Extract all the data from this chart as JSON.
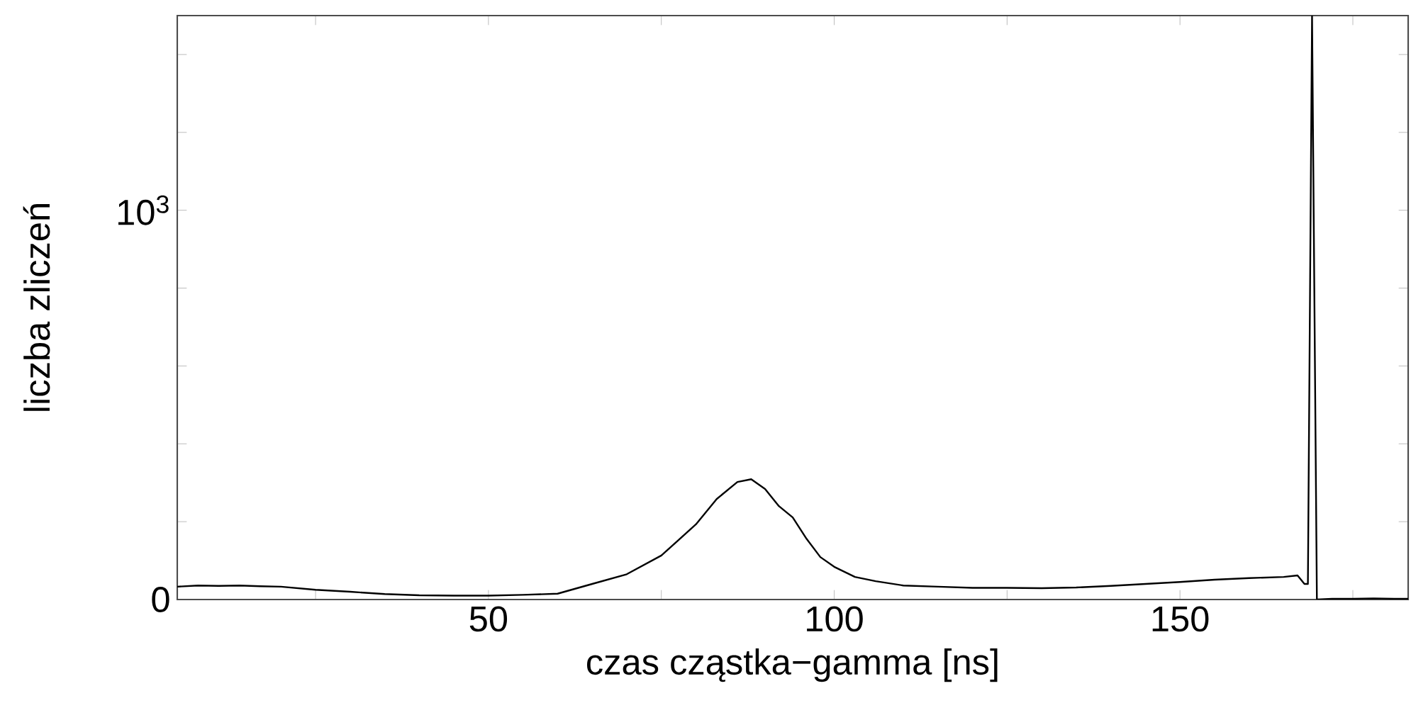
{
  "chart_data": {
    "type": "line",
    "xlabel": "czas cząstka−gamma [ns]",
    "ylabel": "liczba zliczeń",
    "x": [
      5,
      8,
      11,
      14,
      17,
      20,
      25,
      30,
      35,
      40,
      45,
      50,
      55,
      60,
      65,
      70,
      75,
      80,
      83,
      86,
      88,
      90,
      92,
      94,
      96,
      98,
      100,
      103,
      106,
      110,
      115,
      120,
      125,
      130,
      135,
      140,
      145,
      150,
      155,
      160,
      165,
      167,
      168,
      168.5,
      169.1,
      169.8,
      172,
      175,
      178,
      181,
      183
    ],
    "series": [
      {
        "color": "#000000",
        "values": [
          33,
          36,
          35,
          36,
          34,
          33,
          25,
          20,
          14,
          11,
          10,
          10,
          12,
          15,
          40,
          65,
          113,
          193,
          258,
          302,
          309,
          284,
          240,
          211,
          156,
          109,
          84,
          58,
          47,
          36,
          33,
          30,
          30,
          29,
          31,
          35,
          40,
          45,
          51,
          55,
          58,
          62,
          40,
          40,
          1500,
          0,
          2,
          2,
          3,
          2,
          2
        ]
      }
    ],
    "xlim": [
      5,
      183
    ],
    "ylim": [
      0,
      1500
    ],
    "xticks": [
      {
        "value": 25,
        "label": null
      },
      50,
      {
        "value": 75,
        "label": null
      },
      100,
      {
        "value": 125,
        "label": null
      },
      150,
      {
        "value": 175,
        "label": null
      }
    ],
    "yticks": [
      0,
      {
        "value": 200,
        "label": null
      },
      {
        "value": 400,
        "label": null
      },
      {
        "value": 600,
        "label": null
      },
      {
        "value": 800,
        "label": null
      },
      {
        "value": 1000,
        "label": "10$^{3}$"
      },
      {
        "value": 1200,
        "label": null
      },
      {
        "value": 1400,
        "label": null
      }
    ],
    "marker": "none",
    "line_style": "solid"
  }
}
